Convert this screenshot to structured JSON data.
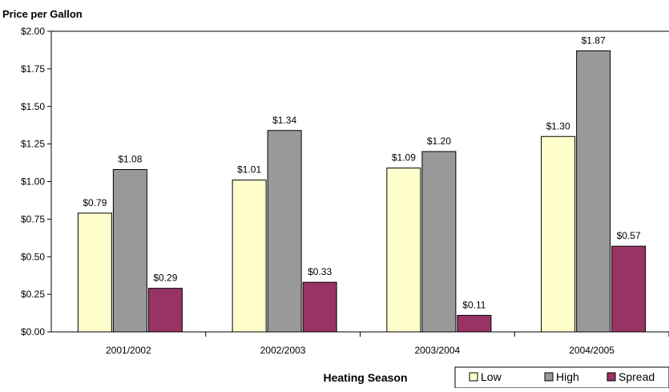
{
  "chart_data": {
    "type": "bar",
    "ylabel": "Price per Gallon",
    "xlabel": "Heating Season",
    "categories": [
      "2001/2002",
      "2002/2003",
      "2003/2004",
      "2004/2005"
    ],
    "series": [
      {
        "name": "Low",
        "values": [
          0.79,
          1.01,
          1.09,
          1.3
        ],
        "color": "#ffffcc",
        "labels": [
          "$0.79",
          "$1.01",
          "$1.09",
          "$1.30"
        ]
      },
      {
        "name": "High",
        "values": [
          1.08,
          1.34,
          1.2,
          1.87
        ],
        "color": "#999999",
        "labels": [
          "$1.08",
          "$1.34",
          "$1.20",
          "$1.87"
        ]
      },
      {
        "name": "Spread",
        "values": [
          0.29,
          0.33,
          0.11,
          0.57
        ],
        "color": "#993366",
        "labels": [
          "$0.29",
          "$0.33",
          "$0.11",
          "$0.57"
        ]
      }
    ],
    "ylim": [
      0,
      2.0
    ],
    "yticks": [
      0,
      0.25,
      0.5,
      0.75,
      1.0,
      1.25,
      1.5,
      1.75,
      2.0
    ],
    "ytick_labels": [
      "$0.00",
      "$0.25",
      "$0.50",
      "$0.75",
      "$1.00",
      "$1.25",
      "$1.50",
      "$1.75",
      "$2.00"
    ],
    "grid": false,
    "legend_position": "bottom-right"
  }
}
